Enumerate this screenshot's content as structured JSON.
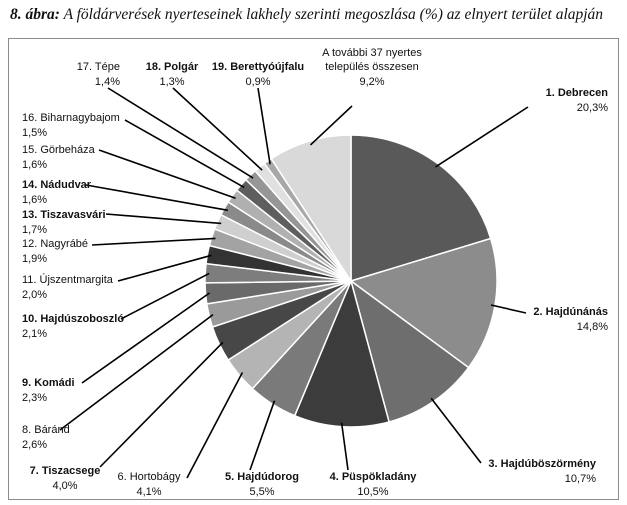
{
  "caption": {
    "prefix": "8. ábra:",
    "text": "A földárverések nyerteseinek lakhely szerinti megoszlása (%) az elnyert terület alapján"
  },
  "chart_data": {
    "type": "pie",
    "start": "12 o'clock",
    "direction": "clockwise",
    "slices": [
      {
        "label": "1. Debrecen",
        "value_text": "20,3%",
        "value": 20.3,
        "bold": true,
        "color": "#595959"
      },
      {
        "label": "2. Hajdúnánás",
        "value_text": "14,8%",
        "value": 14.8,
        "bold": true,
        "color": "#8c8c8c"
      },
      {
        "label": "3. Hajdúböszörmény",
        "value_text": "10,7%",
        "value": 10.7,
        "bold": true,
        "color": "#6e6e6e"
      },
      {
        "label": "4. Püspökladány",
        "value_text": "10,5%",
        "value": 10.5,
        "bold": true,
        "color": "#3c3c3c"
      },
      {
        "label": "5. Hajdúdorog",
        "value_text": "5,5%",
        "value": 5.5,
        "bold": true,
        "color": "#7a7a7a"
      },
      {
        "label": "6. Hortobágy",
        "value_text": "4,1%",
        "value": 4.1,
        "bold": false,
        "color": "#b4b4b4"
      },
      {
        "label": "7. Tiszacsege",
        "value_text": "4,0%",
        "value": 4.0,
        "bold": true,
        "color": "#474747"
      },
      {
        "label": "8. Báránd",
        "value_text": "2,6%",
        "value": 2.6,
        "bold": false,
        "color": "#9a9a9a"
      },
      {
        "label": "9. Komádi",
        "value_text": "2,3%",
        "value": 2.3,
        "bold": true,
        "color": "#6a6a6a"
      },
      {
        "label": "10. Hajdúszoboszló",
        "value_text": "2,1%",
        "value": 2.1,
        "bold": true,
        "color": "#7d7d7d"
      },
      {
        "label": "11. Újszentmargita",
        "value_text": "2,0%",
        "value": 2.0,
        "bold": false,
        "color": "#333333"
      },
      {
        "label": "12. Nagyrábé",
        "value_text": "1,9%",
        "value": 1.9,
        "bold": false,
        "color": "#a3a3a3"
      },
      {
        "label": "13. Tiszavasvári",
        "value_text": "1,7%",
        "value": 1.7,
        "bold": true,
        "color": "#cfcfcf"
      },
      {
        "label": "14. Nádudvar",
        "value_text": "1,6%",
        "value": 1.6,
        "bold": true,
        "color": "#8a8a8a"
      },
      {
        "label": "15. Görbeháza",
        "value_text": "1,6%",
        "value": 1.6,
        "bold": false,
        "color": "#b0b0b0"
      },
      {
        "label": "16. Biharnagybajom",
        "value_text": "1,5%",
        "value": 1.5,
        "bold": false,
        "color": "#5e5e5e"
      },
      {
        "label": "17. Tépe",
        "value_text": "1,4%",
        "value": 1.4,
        "bold": false,
        "color": "#969696"
      },
      {
        "label": "18. Polgár",
        "value_text": "1,3%",
        "value": 1.3,
        "bold": true,
        "color": "#e0e0e0"
      },
      {
        "label": "19. Berettyóújfalu",
        "value_text": "0,9%",
        "value": 0.9,
        "bold": true,
        "color": "#a8a8a8"
      },
      {
        "label": "A további 37 nyertes\ntelepülés összesen",
        "value_text": "9,2%",
        "value": 9.2,
        "bold": false,
        "color": "#d9d9d9"
      }
    ]
  }
}
